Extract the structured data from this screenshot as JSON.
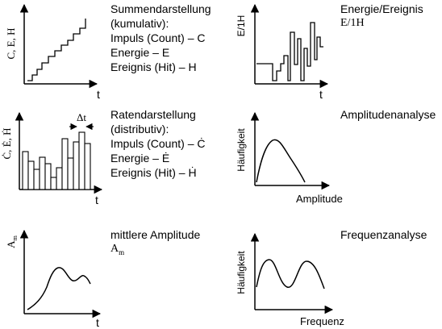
{
  "panels": [
    {
      "id": "summendarstellung",
      "axis_y": "C, E, H",
      "axis_x": "t",
      "lines": [
        "Summendarstellung",
        "(kumulativ):",
        "Impuls (Count) – C",
        "Energie – E",
        "Ereignis (Hit) – H"
      ]
    },
    {
      "id": "energie-ereignis",
      "axis_y": "E/1H",
      "axis_x": "t",
      "lines": [
        "Energie/Ereignis",
        "E/1H"
      ]
    },
    {
      "id": "ratendarstellung",
      "axis_y": "Ċ, Ė, Ḣ",
      "axis_x": "t",
      "delta_label": "Δt",
      "lines": [
        "Ratendarstellung",
        "(distributiv):",
        "Impuls (Count) – Ċ",
        "Energie – Ė",
        "Ereignis (Hit) – Ḣ"
      ]
    },
    {
      "id": "amplitudenanalyse",
      "axis_y": "Häufigkeit",
      "axis_x": "Amplitude",
      "lines": [
        "Amplitudenanalyse"
      ]
    },
    {
      "id": "mittlere-amplitude",
      "axis_y": "A",
      "axis_y_sub": "m",
      "axis_x": "t",
      "lines": [
        "mittlere Amplitude"
      ],
      "symbol": "A",
      "symbol_sub": "m"
    },
    {
      "id": "frequenzanalyse",
      "axis_y": "Häufigkeit",
      "axis_x": "Frequenz",
      "lines": [
        "Frequenzanalyse"
      ]
    }
  ]
}
